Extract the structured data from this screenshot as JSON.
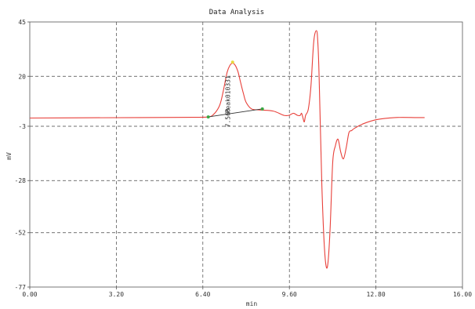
{
  "chart_data": {
    "type": "line",
    "title": "Data Analysis",
    "xlabel": "min",
    "ylabel": "mV",
    "xlim": [
      0.0,
      16.0
    ],
    "ylim": [
      -77,
      45
    ],
    "x_ticks": [
      "0.00",
      "3.20",
      "6.40",
      "9.60",
      "12.80",
      "16.00"
    ],
    "x_tick_values": [
      0.0,
      3.2,
      6.4,
      9.6,
      12.8,
      16.0
    ],
    "y_ticks": [
      "45",
      "20",
      "-3",
      "-28",
      "-52",
      "-77"
    ],
    "y_tick_values": [
      45,
      20,
      -3,
      -28,
      -52,
      -77
    ],
    "grid": true,
    "series": [
      {
        "color": "#e8403a",
        "x": [
          0.0,
          2.0,
          4.0,
          6.0,
          6.6,
          6.8,
          7.0,
          7.1,
          7.2,
          7.3,
          7.4,
          7.5,
          7.6,
          7.7,
          7.8,
          7.9,
          8.0,
          8.2,
          8.5,
          9.0,
          9.4,
          9.6,
          9.75,
          9.9,
          10.0,
          10.05,
          10.1,
          10.15,
          10.2,
          10.3,
          10.4,
          10.5,
          10.6,
          10.65,
          10.7,
          10.8,
          10.9,
          11.0,
          11.1,
          11.2,
          11.3,
          11.4,
          11.5,
          11.6,
          11.7,
          11.8,
          11.9,
          12.0,
          12.3,
          12.8,
          13.5,
          14.3,
          14.6
        ],
        "y": [
          0.8,
          0.9,
          1.0,
          1.1,
          1.3,
          2.5,
          6.0,
          10.0,
          16.0,
          22.0,
          25.0,
          26.0,
          25.0,
          22.0,
          17.0,
          12.0,
          8.0,
          5.0,
          4.5,
          4.0,
          2.0,
          2.1,
          3.0,
          2.0,
          2.0,
          3.0,
          1.0,
          -1.0,
          2.0,
          5.0,
          16.0,
          36.0,
          41.0,
          36.0,
          20.0,
          -30.0,
          -60.0,
          -68.0,
          -52.0,
          -20.0,
          -12.0,
          -9.0,
          -15.0,
          -18.0,
          -13.0,
          -6.0,
          -5.0,
          -4.0,
          -2.0,
          0.0,
          1.0,
          1.0,
          1.0
        ]
      }
    ],
    "baseline": {
      "color": "#333333",
      "x": [
        6.6,
        8.6
      ],
      "y": [
        1.3,
        5.0
      ]
    },
    "markers": [
      {
        "x": 6.6,
        "y": 1.3,
        "color": "#3aa845"
      },
      {
        "x": 7.5,
        "y": 26.5,
        "color": "#e8d83a"
      },
      {
        "x": 8.6,
        "y": 5.0,
        "color": "#3aa845"
      }
    ],
    "annotations": [
      {
        "text": "Peak010331",
        "x": 7.4,
        "y": 3.0
      },
      {
        "text": "7.560",
        "x": 7.4,
        "y": -3.5
      }
    ]
  }
}
